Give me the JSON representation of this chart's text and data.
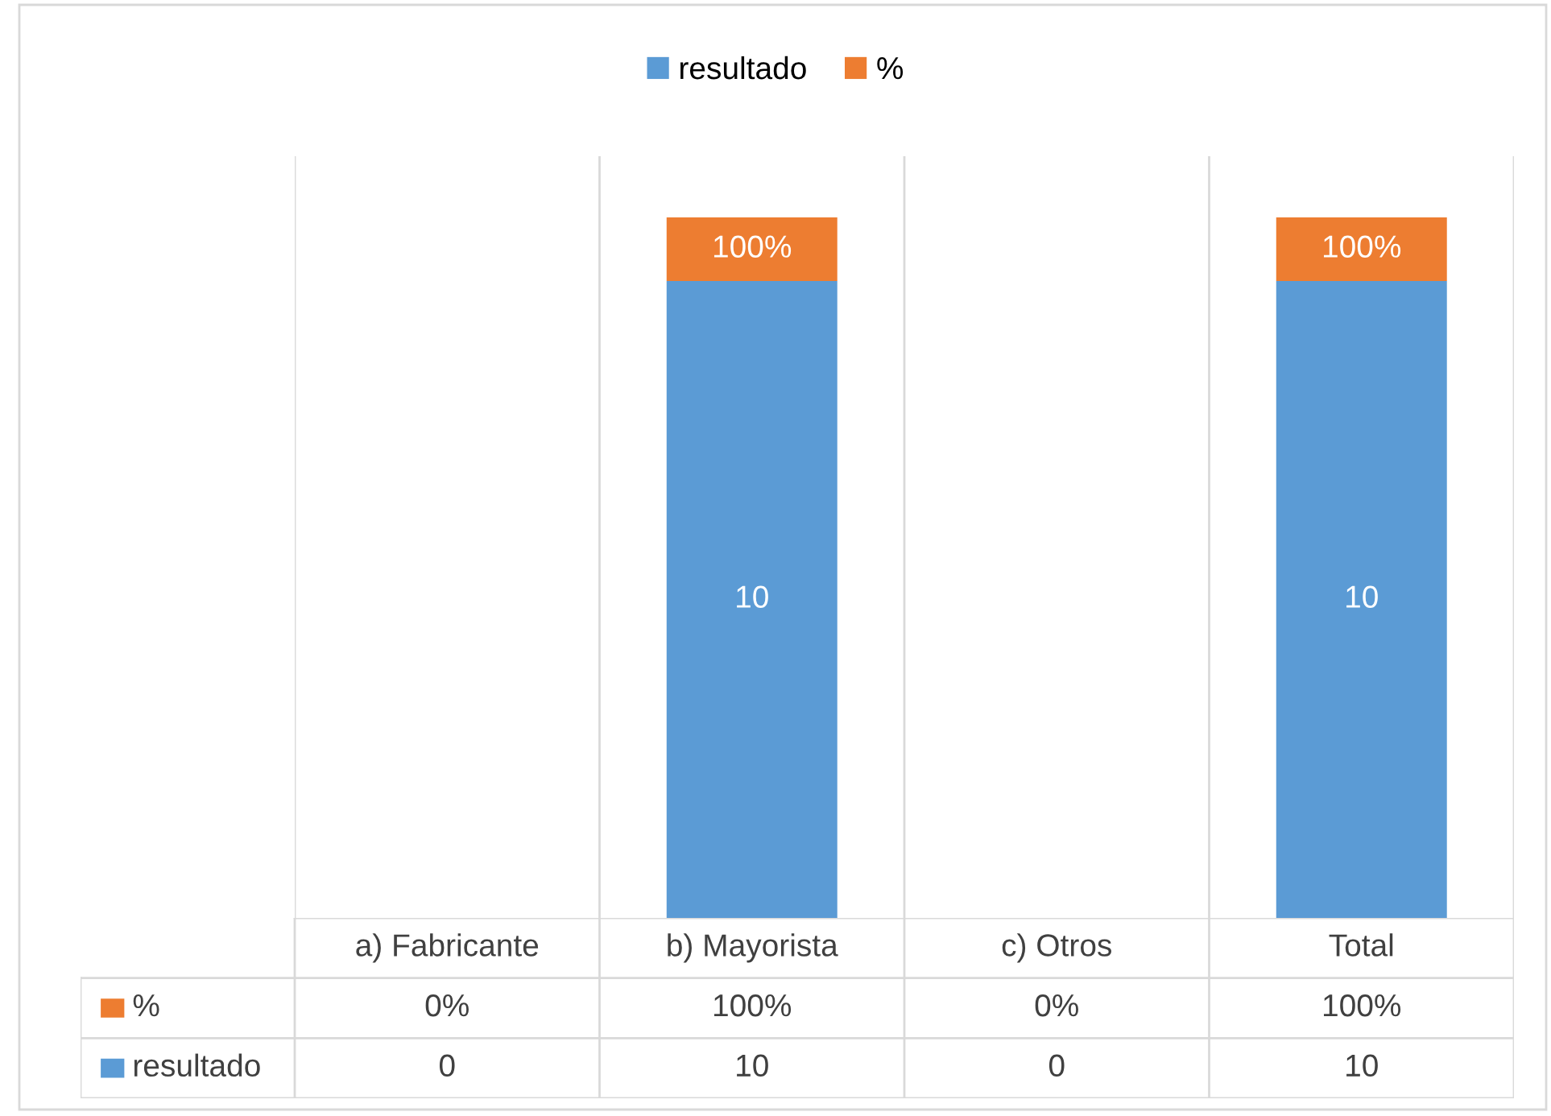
{
  "chart_data": {
    "type": "bar",
    "stacked": true,
    "categories": [
      "a) Fabricante",
      "b) Mayorista",
      "c) Otros",
      "Total"
    ],
    "series": [
      {
        "name": "resultado",
        "color": "#5b9bd5",
        "values": [
          0,
          10,
          0,
          10
        ],
        "value_labels": [
          "0",
          "10",
          "0",
          "10"
        ]
      },
      {
        "name": "%",
        "color": "#ed7d31",
        "values": [
          0,
          1,
          0,
          1
        ],
        "value_labels": [
          "0%",
          "100%",
          "0%",
          "100%"
        ]
      }
    ],
    "legend": "top",
    "grid": "x"
  }
}
